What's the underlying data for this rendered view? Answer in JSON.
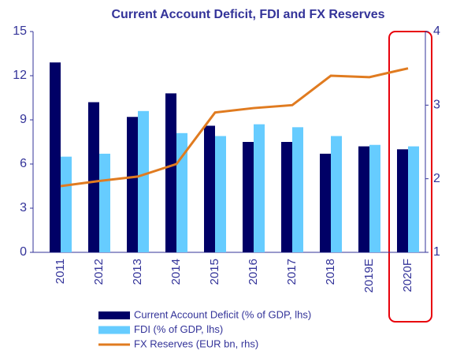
{
  "chart_data": {
    "type": "bar",
    "title": "Current Account Deficit, FDI and FX Reserves",
    "categories": [
      "2011",
      "2012",
      "2013",
      "2014",
      "2015",
      "2016",
      "2017",
      "2018",
      "2019E",
      "2020F"
    ],
    "series": [
      {
        "name": "Current Account Deficit (% of GDP, lhs)",
        "color": "#000066",
        "type": "bar",
        "values": [
          12.9,
          10.2,
          9.2,
          10.8,
          8.6,
          7.5,
          7.5,
          6.7,
          7.2,
          7.0
        ]
      },
      {
        "name": "FDI (% of GDP, lhs)",
        "color": "#66ccff",
        "type": "bar",
        "values": [
          6.5,
          6.7,
          9.6,
          8.1,
          7.9,
          8.7,
          8.5,
          7.9,
          7.3,
          7.2
        ]
      },
      {
        "name": "FX Reserves (EUR bn, rhs)",
        "color": "#e07b20",
        "type": "line",
        "axis": "y2",
        "values": [
          1.9,
          1.97,
          2.03,
          2.2,
          2.9,
          2.96,
          3.0,
          3.4,
          3.38,
          3.5
        ]
      }
    ],
    "ylim": [
      0,
      15
    ],
    "yticks": [
      0,
      3,
      6,
      9,
      12,
      15
    ],
    "y2lim": [
      1,
      4
    ],
    "y2ticks": [
      1,
      2,
      3,
      4
    ],
    "grid": false
  }
}
